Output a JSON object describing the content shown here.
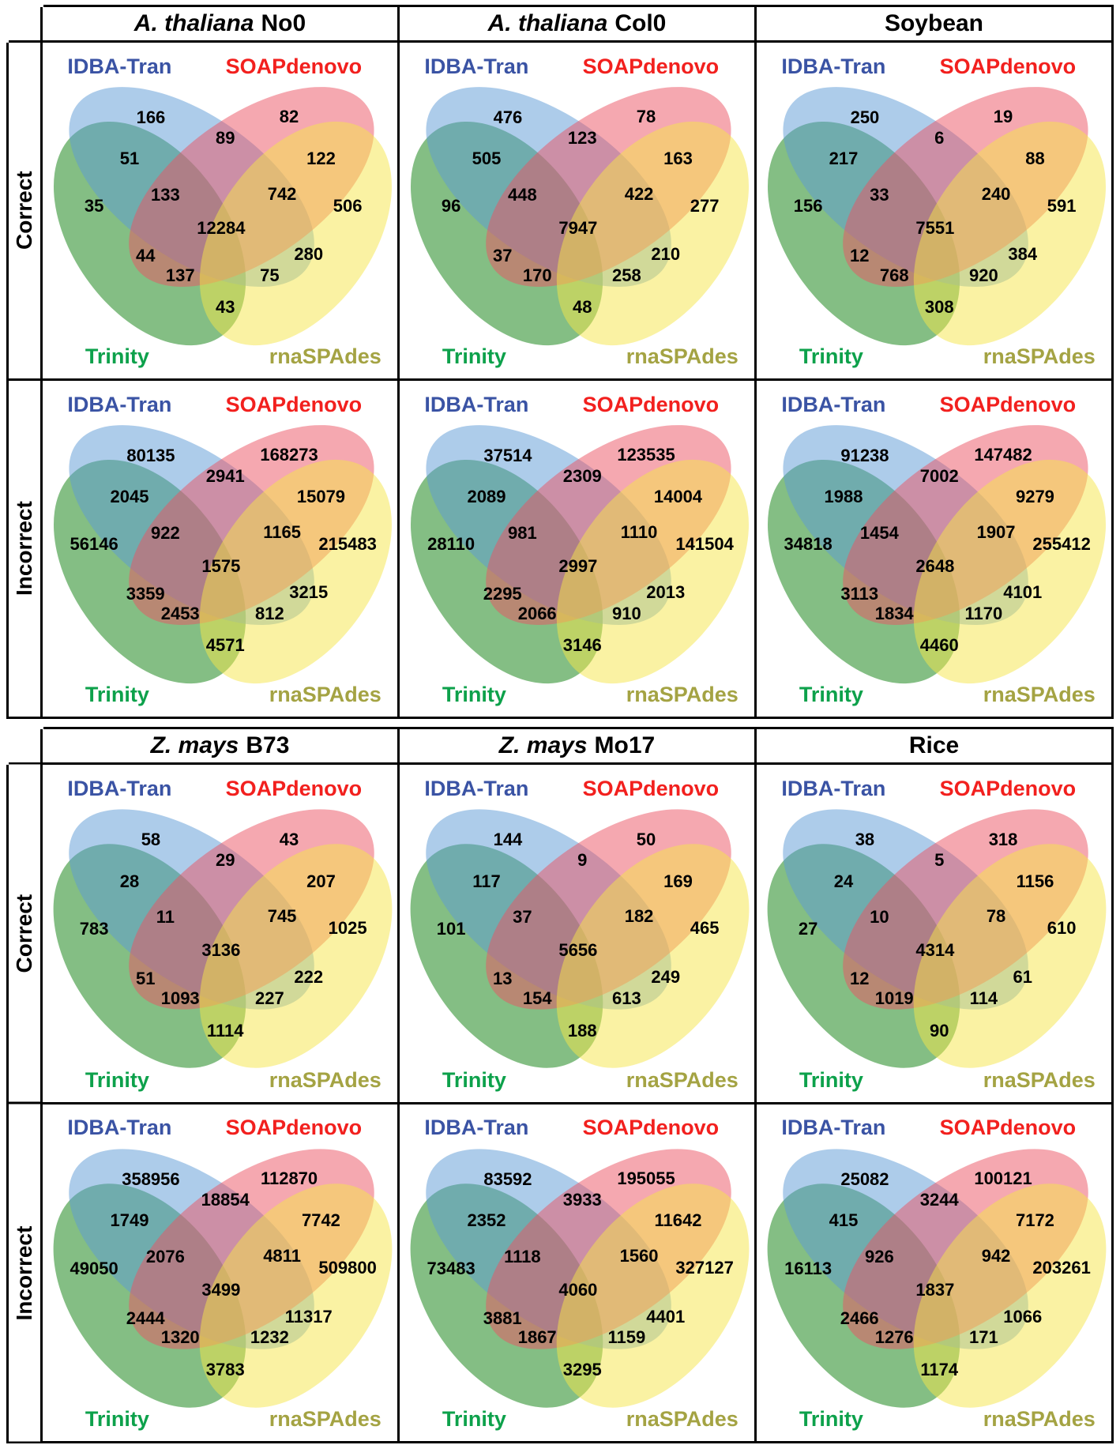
{
  "row_labels": [
    "Correct",
    "Incorrect"
  ],
  "set_labels": {
    "top_left": "IDBA-Tran",
    "top_right": "SOAPdenovo",
    "bottom_left": "Trinity",
    "bottom_right": "rnaSPAdes"
  },
  "label_colors": {
    "top_left": "#3A53A4",
    "top_right": "#F2201E",
    "bottom_left": "#0DA14B",
    "bottom_right": "#A4A343"
  },
  "ellipse_colors": {
    "trinity_green": "rgba(10,125,10,0.5)",
    "idba_blue": "rgba(92,153,214,0.5)",
    "soap_red": "rgba(235,82,97,0.5)",
    "rnaspades_yellow": "rgba(245,230,71,0.5)"
  },
  "blocks": [
    {
      "columns": [
        {
          "italic": "A. thaliana",
          "rest": "No0"
        },
        {
          "italic": "A. thaliana",
          "rest": "Col0"
        },
        {
          "italic": "",
          "rest": "Soybean"
        }
      ]
    },
    {
      "columns": [
        {
          "italic": "Z. mays",
          "rest": "B73"
        },
        {
          "italic": "Z. mays",
          "rest": "Mo17"
        },
        {
          "italic": "",
          "rest": "Rice"
        }
      ]
    }
  ],
  "region_order": [
    "idba_only",
    "idba_soap",
    "soap_only",
    "trinity_idba",
    "soap_rnaspades",
    "trinity_only",
    "trinity_idba_soap",
    "idba_soap_rnaspades",
    "rnaspades_only",
    "all_four",
    "trinity_soap",
    "idba_rnaspades",
    "trinity_soap_rnaspades",
    "trinity_idba_rnaspades",
    "trinity_rnaspades"
  ],
  "chart_data": [
    {
      "type": "venn",
      "title": "A. thaliana No0 - Correct",
      "sets": [
        "IDBA-Tran",
        "SOAPdenovo",
        "Trinity",
        "rnaSPAdes"
      ],
      "regions": {
        "idba_only": 166,
        "idba_soap": 89,
        "soap_only": 82,
        "trinity_idba": 51,
        "soap_rnaspades": 122,
        "trinity_only": 35,
        "trinity_idba_soap": 133,
        "idba_soap_rnaspades": 742,
        "rnaspades_only": 506,
        "all_four": 12284,
        "trinity_soap": 44,
        "idba_rnaspades": 280,
        "trinity_soap_rnaspades": 137,
        "trinity_idba_rnaspades": 75,
        "trinity_rnaspades": 43
      }
    },
    {
      "type": "venn",
      "title": "A. thaliana Col0 - Correct",
      "sets": [
        "IDBA-Tran",
        "SOAPdenovo",
        "Trinity",
        "rnaSPAdes"
      ],
      "regions": {
        "idba_only": 476,
        "idba_soap": 123,
        "soap_only": 78,
        "trinity_idba": 505,
        "soap_rnaspades": 163,
        "trinity_only": 96,
        "trinity_idba_soap": 448,
        "idba_soap_rnaspades": 422,
        "rnaspades_only": 277,
        "all_four": 7947,
        "trinity_soap": 37,
        "idba_rnaspades": 210,
        "trinity_soap_rnaspades": 170,
        "trinity_idba_rnaspades": 258,
        "trinity_rnaspades": 48
      }
    },
    {
      "type": "venn",
      "title": "Soybean - Correct",
      "sets": [
        "IDBA-Tran",
        "SOAPdenovo",
        "Trinity",
        "rnaSPAdes"
      ],
      "regions": {
        "idba_only": 250,
        "idba_soap": 6,
        "soap_only": 19,
        "trinity_idba": 217,
        "soap_rnaspades": 88,
        "trinity_only": 156,
        "trinity_idba_soap": 33,
        "idba_soap_rnaspades": 240,
        "rnaspades_only": 591,
        "all_four": 7551,
        "trinity_soap": 12,
        "idba_rnaspades": 384,
        "trinity_soap_rnaspades": 768,
        "trinity_idba_rnaspades": 920,
        "trinity_rnaspades": 308
      }
    },
    {
      "type": "venn",
      "title": "A. thaliana No0 - Incorrect",
      "sets": [
        "IDBA-Tran",
        "SOAPdenovo",
        "Trinity",
        "rnaSPAdes"
      ],
      "regions": {
        "idba_only": 80135,
        "idba_soap": 2941,
        "soap_only": 168273,
        "trinity_idba": 2045,
        "soap_rnaspades": 15079,
        "trinity_only": 56146,
        "trinity_idba_soap": 922,
        "idba_soap_rnaspades": 1165,
        "rnaspades_only": 215483,
        "all_four": 1575,
        "trinity_soap": 3359,
        "idba_rnaspades": 3215,
        "trinity_soap_rnaspades": 2453,
        "trinity_idba_rnaspades": 812,
        "trinity_rnaspades": 4571
      }
    },
    {
      "type": "venn",
      "title": "A. thaliana Col0 - Incorrect",
      "sets": [
        "IDBA-Tran",
        "SOAPdenovo",
        "Trinity",
        "rnaSPAdes"
      ],
      "regions": {
        "idba_only": 37514,
        "idba_soap": 2309,
        "soap_only": 123535,
        "trinity_idba": 2089,
        "soap_rnaspades": 14004,
        "trinity_only": 28110,
        "trinity_idba_soap": 981,
        "idba_soap_rnaspades": 1110,
        "rnaspades_only": 141504,
        "all_four": 2997,
        "trinity_soap": 2295,
        "idba_rnaspades": 2013,
        "trinity_soap_rnaspades": 2066,
        "trinity_idba_rnaspades": 910,
        "trinity_rnaspades": 3146
      }
    },
    {
      "type": "venn",
      "title": "Soybean - Incorrect",
      "sets": [
        "IDBA-Tran",
        "SOAPdenovo",
        "Trinity",
        "rnaSPAdes"
      ],
      "regions": {
        "idba_only": 91238,
        "idba_soap": 7002,
        "soap_only": 147482,
        "trinity_idba": 1988,
        "soap_rnaspades": 9279,
        "trinity_only": 34818,
        "trinity_idba_soap": 1454,
        "idba_soap_rnaspades": 1907,
        "rnaspades_only": 255412,
        "all_four": 2648,
        "trinity_soap": 3113,
        "idba_rnaspades": 4101,
        "trinity_soap_rnaspades": 1834,
        "trinity_idba_rnaspades": 1170,
        "trinity_rnaspades": 4460
      }
    },
    {
      "type": "venn",
      "title": "Z. mays B73 - Correct",
      "sets": [
        "IDBA-Tran",
        "SOAPdenovo",
        "Trinity",
        "rnaSPAdes"
      ],
      "regions": {
        "idba_only": 58,
        "idba_soap": 29,
        "soap_only": 43,
        "trinity_idba": 28,
        "soap_rnaspades": 207,
        "trinity_only": 783,
        "trinity_idba_soap": 11,
        "idba_soap_rnaspades": 745,
        "rnaspades_only": 1025,
        "all_four": 3136,
        "trinity_soap": 51,
        "idba_rnaspades": 222,
        "trinity_soap_rnaspades": 1093,
        "trinity_idba_rnaspades": 227,
        "trinity_rnaspades": 1114
      }
    },
    {
      "type": "venn",
      "title": "Z. mays Mo17 - Correct",
      "sets": [
        "IDBA-Tran",
        "SOAPdenovo",
        "Trinity",
        "rnaSPAdes"
      ],
      "regions": {
        "idba_only": 144,
        "idba_soap": 9,
        "soap_only": 50,
        "trinity_idba": 117,
        "soap_rnaspades": 169,
        "trinity_only": 101,
        "trinity_idba_soap": 37,
        "idba_soap_rnaspades": 182,
        "rnaspades_only": 465,
        "all_four": 5656,
        "trinity_soap": 13,
        "idba_rnaspades": 249,
        "trinity_soap_rnaspades": 154,
        "trinity_idba_rnaspades": 613,
        "trinity_rnaspades": 188
      }
    },
    {
      "type": "venn",
      "title": "Rice - Correct",
      "sets": [
        "IDBA-Tran",
        "SOAPdenovo",
        "Trinity",
        "rnaSPAdes"
      ],
      "regions": {
        "idba_only": 38,
        "idba_soap": 5,
        "soap_only": 318,
        "trinity_idba": 24,
        "soap_rnaspades": 1156,
        "trinity_only": 27,
        "trinity_idba_soap": 10,
        "idba_soap_rnaspades": 78,
        "rnaspades_only": 610,
        "all_four": 4314,
        "trinity_soap": 12,
        "idba_rnaspades": 61,
        "trinity_soap_rnaspades": 1019,
        "trinity_idba_rnaspades": 114,
        "trinity_rnaspades": 90
      }
    },
    {
      "type": "venn",
      "title": "Z. mays B73 - Incorrect",
      "sets": [
        "IDBA-Tran",
        "SOAPdenovo",
        "Trinity",
        "rnaSPAdes"
      ],
      "regions": {
        "idba_only": 358956,
        "idba_soap": 18854,
        "soap_only": 112870,
        "trinity_idba": 1749,
        "soap_rnaspades": 7742,
        "trinity_only": 49050,
        "trinity_idba_soap": 2076,
        "idba_soap_rnaspades": 4811,
        "rnaspades_only": 509800,
        "all_four": 3499,
        "trinity_soap": 2444,
        "idba_rnaspades": 11317,
        "trinity_soap_rnaspades": 1320,
        "trinity_idba_rnaspades": 1232,
        "trinity_rnaspades": 3783
      }
    },
    {
      "type": "venn",
      "title": "Z. mays Mo17 - Incorrect",
      "sets": [
        "IDBA-Tran",
        "SOAPdenovo",
        "Trinity",
        "rnaSPAdes"
      ],
      "regions": {
        "idba_only": 83592,
        "idba_soap": 3933,
        "soap_only": 195055,
        "trinity_idba": 2352,
        "soap_rnaspades": 11642,
        "trinity_only": 73483,
        "trinity_idba_soap": 1118,
        "idba_soap_rnaspades": 1560,
        "rnaspades_only": 327127,
        "all_four": 4060,
        "trinity_soap": 3881,
        "idba_rnaspades": 4401,
        "trinity_soap_rnaspades": 1867,
        "trinity_idba_rnaspades": 1159,
        "trinity_rnaspades": 3295
      }
    },
    {
      "type": "venn",
      "title": "Rice - Incorrect",
      "sets": [
        "IDBA-Tran",
        "SOAPdenovo",
        "Trinity",
        "rnaSPAdes"
      ],
      "regions": {
        "idba_only": 25082,
        "idba_soap": 3244,
        "soap_only": 100121,
        "trinity_idba": 415,
        "soap_rnaspades": 7172,
        "trinity_only": 16113,
        "trinity_idba_soap": 926,
        "idba_soap_rnaspades": 942,
        "rnaspades_only": 203261,
        "all_four": 1837,
        "trinity_soap": 2466,
        "idba_rnaspades": 1066,
        "trinity_soap_rnaspades": 1276,
        "trinity_idba_rnaspades": 171,
        "trinity_rnaspades": 1174
      }
    }
  ]
}
